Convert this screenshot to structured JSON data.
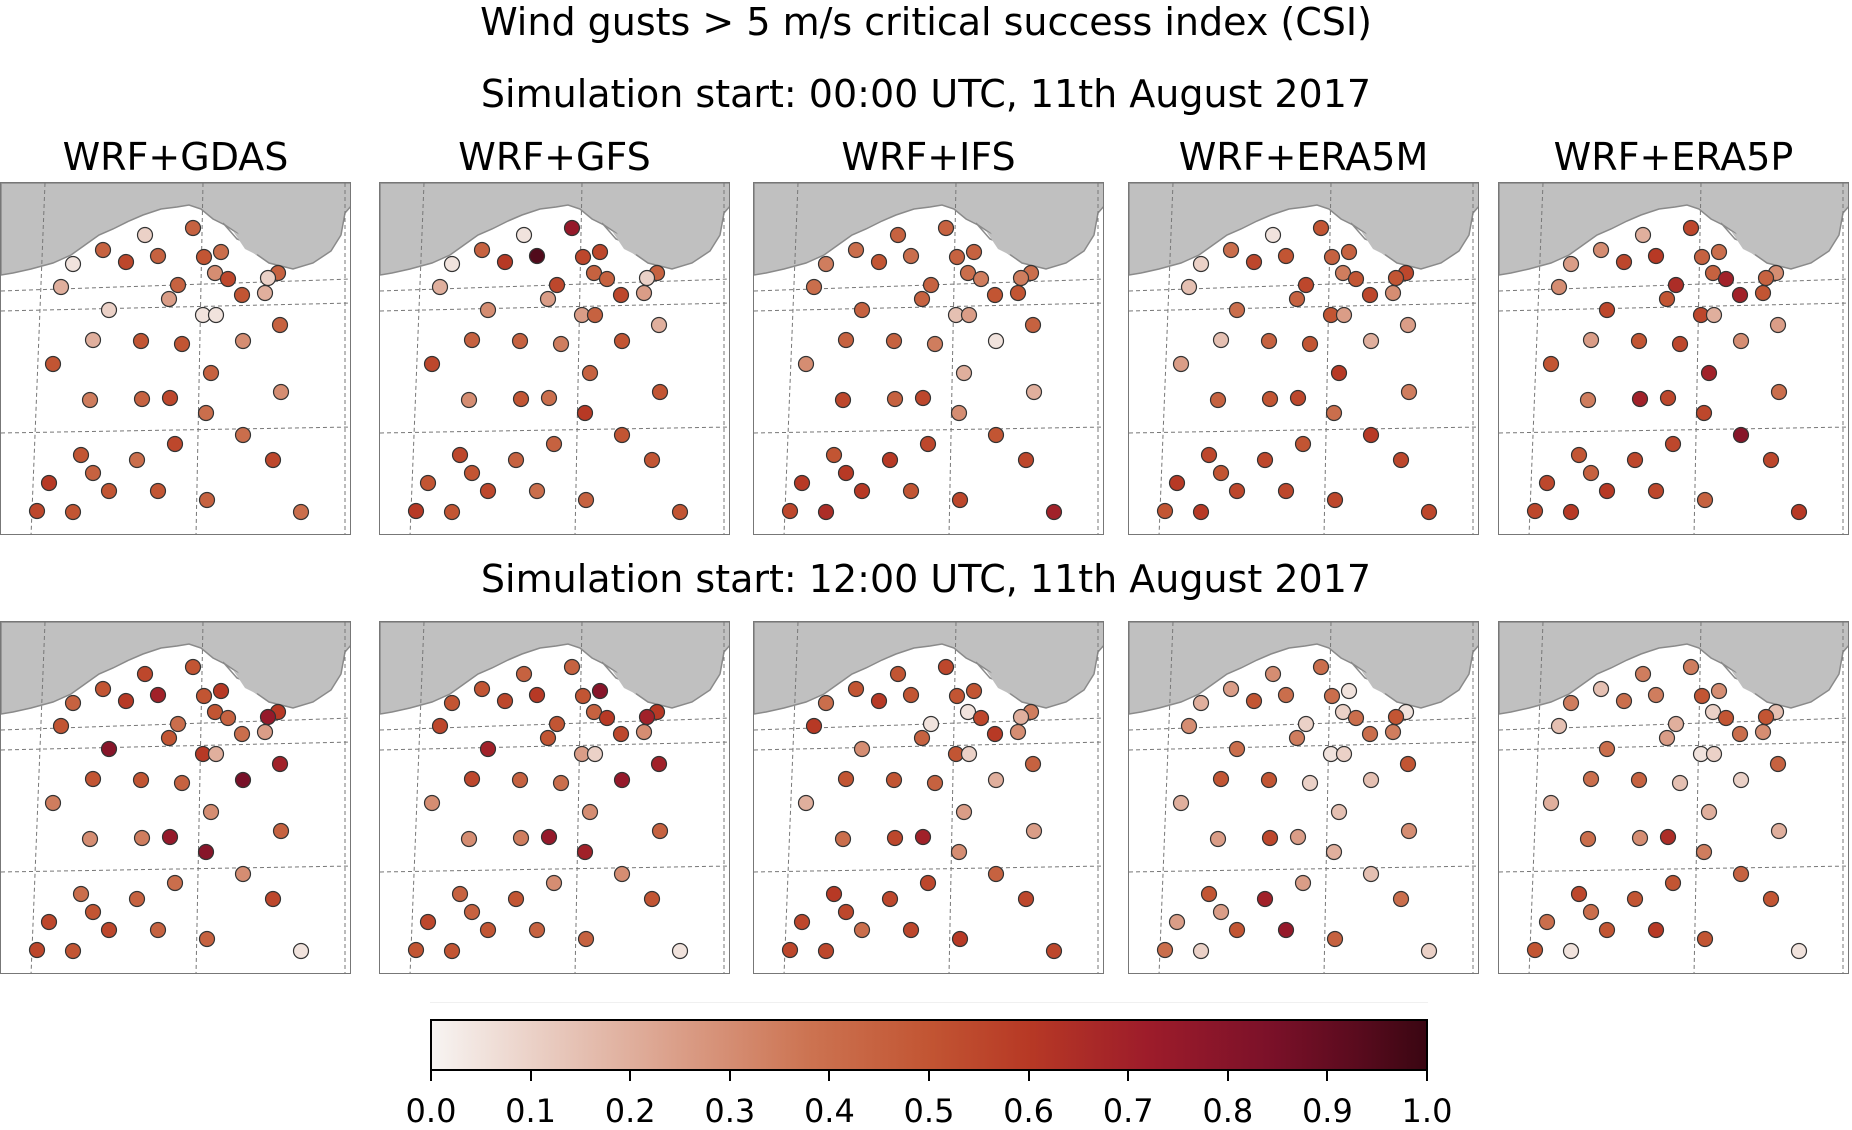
{
  "title": "Wind gusts > 5 m/s critical success index (CSI)",
  "row_titles": [
    "Simulation start: 00:00 UTC, 11th August 2017",
    "Simulation start: 12:00 UTC, 11th August 2017"
  ],
  "model_titles": [
    "WRF+GDAS",
    "WRF+GFS",
    "WRF+IFS",
    "WRF+ERA5M",
    "WRF+ERA5P"
  ],
  "colorbar": {
    "colormap": "white-to-dark-red",
    "min": 0.0,
    "max": 1.0,
    "tick_labels": [
      "0.0",
      "0.1",
      "0.2",
      "0.3",
      "0.4",
      "0.5",
      "0.6",
      "0.7",
      "0.8",
      "0.9",
      "1.0"
    ]
  },
  "colors": {
    "land": "#c0c0c0",
    "coast": "#8a8a8a",
    "station_edge": "#333333",
    "gridline": "#777777"
  },
  "map_panels": {
    "row1": [
      [
        0.1,
        0.45,
        0.4,
        0.45,
        0.05,
        0.2,
        0.55,
        0.45,
        0.5,
        0.3,
        0.45,
        0.55,
        0.5,
        0.2,
        0.45,
        0.1,
        0.1,
        0.25,
        0.05,
        0.05,
        0.45,
        0.2,
        0.5,
        0.5,
        0.3,
        0.5,
        0.45,
        0.35,
        0.45,
        0.55,
        0.4,
        0.3,
        0.4,
        0.55,
        0.5,
        0.4,
        0.45,
        0.55,
        0.6,
        0.5,
        0.5,
        0.45,
        0.55,
        0.5,
        0.4
      ],
      [
        0.05,
        0.75,
        0.55,
        0.45,
        0.05,
        0.2,
        0.6,
        0.95,
        0.55,
        0.45,
        0.55,
        0.45,
        0.55,
        0.25,
        0.45,
        0.1,
        0.3,
        0.25,
        0.25,
        0.45,
        0.2,
        0.45,
        0.45,
        0.35,
        0.5,
        0.55,
        0.45,
        0.3,
        0.5,
        0.4,
        0.6,
        0.5,
        0.5,
        0.45,
        0.55,
        0.45,
        0.5,
        0.5,
        0.5,
        0.55,
        0.4,
        0.45,
        0.6,
        0.5,
        0.5
      ],
      [
        0.45,
        0.45,
        0.45,
        0.4,
        0.35,
        0.4,
        0.5,
        0.4,
        0.45,
        0.4,
        0.45,
        0.35,
        0.5,
        0.5,
        0.4,
        0.35,
        0.45,
        0.45,
        0.15,
        0.25,
        0.45,
        0.45,
        0.45,
        0.35,
        0.05,
        0.3,
        0.2,
        0.55,
        0.45,
        0.55,
        0.3,
        0.2,
        0.5,
        0.55,
        0.5,
        0.6,
        0.6,
        0.55,
        0.6,
        0.6,
        0.5,
        0.55,
        0.55,
        0.65,
        0.7
      ],
      [
        0.05,
        0.5,
        0.45,
        0.4,
        0.1,
        0.15,
        0.55,
        0.5,
        0.45,
        0.35,
        0.55,
        0.5,
        0.55,
        0.3,
        0.55,
        0.5,
        0.4,
        0.45,
        0.5,
        0.25,
        0.25,
        0.15,
        0.45,
        0.5,
        0.2,
        0.25,
        0.6,
        0.45,
        0.5,
        0.55,
        0.4,
        0.35,
        0.6,
        0.5,
        0.55,
        0.55,
        0.5,
        0.55,
        0.6,
        0.55,
        0.55,
        0.55,
        0.5,
        0.6,
        0.55
      ],
      [
        0.2,
        0.55,
        0.4,
        0.3,
        0.25,
        0.3,
        0.55,
        0.6,
        0.45,
        0.45,
        0.65,
        0.7,
        0.7,
        0.5,
        0.3,
        0.45,
        0.55,
        0.5,
        0.55,
        0.2,
        0.25,
        0.25,
        0.5,
        0.55,
        0.3,
        0.5,
        0.7,
        0.35,
        0.7,
        0.55,
        0.55,
        0.4,
        0.8,
        0.55,
        0.5,
        0.55,
        0.45,
        0.55,
        0.55,
        0.6,
        0.55,
        0.45,
        0.55,
        0.6,
        0.6
      ]
    ],
    "row2": [
      [
        0.55,
        0.5,
        0.6,
        0.5,
        0.45,
        0.5,
        0.6,
        0.7,
        0.5,
        0.5,
        0.4,
        0.45,
        0.4,
        0.25,
        0.6,
        0.75,
        0.8,
        0.5,
        0.6,
        0.2,
        0.7,
        0.5,
        0.5,
        0.45,
        0.85,
        0.35,
        0.3,
        0.3,
        0.35,
        0.75,
        0.8,
        0.45,
        0.3,
        0.4,
        0.4,
        0.45,
        0.5,
        0.55,
        0.55,
        0.55,
        0.45,
        0.45,
        0.55,
        0.5,
        0.05
      ],
      [
        0.45,
        0.45,
        0.8,
        0.5,
        0.5,
        0.55,
        0.55,
        0.6,
        0.5,
        0.45,
        0.5,
        0.6,
        0.55,
        0.3,
        0.6,
        0.7,
        0.7,
        0.5,
        0.25,
        0.1,
        0.7,
        0.55,
        0.45,
        0.4,
        0.75,
        0.3,
        0.3,
        0.3,
        0.35,
        0.75,
        0.7,
        0.45,
        0.3,
        0.3,
        0.45,
        0.5,
        0.45,
        0.5,
        0.55,
        0.5,
        0.45,
        0.45,
        0.5,
        0.5,
        0.05
      ],
      [
        0.5,
        0.55,
        0.5,
        0.5,
        0.4,
        0.6,
        0.6,
        0.5,
        0.5,
        0.05,
        0.05,
        0.55,
        0.6,
        0.3,
        0.35,
        0.2,
        0.3,
        0.45,
        0.5,
        0.1,
        0.45,
        0.5,
        0.5,
        0.45,
        0.2,
        0.2,
        0.25,
        0.4,
        0.55,
        0.7,
        0.3,
        0.25,
        0.45,
        0.55,
        0.6,
        0.55,
        0.55,
        0.55,
        0.55,
        0.4,
        0.55,
        0.6,
        0.55,
        0.55,
        0.55
      ],
      [
        0.3,
        0.4,
        0.05,
        0.25,
        0.2,
        0.3,
        0.5,
        0.4,
        0.4,
        0.1,
        0.1,
        0.4,
        0.4,
        0.35,
        0.05,
        0.5,
        0.4,
        0.35,
        0.05,
        0.1,
        0.5,
        0.5,
        0.5,
        0.1,
        0.15,
        0.2,
        0.15,
        0.25,
        0.55,
        0.25,
        0.2,
        0.3,
        0.15,
        0.25,
        0.5,
        0.7,
        0.25,
        0.4,
        0.25,
        0.5,
        0.75,
        0.45,
        0.4,
        0.1,
        0.1
      ],
      [
        0.35,
        0.35,
        0.3,
        0.15,
        0.35,
        0.15,
        0.4,
        0.35,
        0.5,
        0.1,
        0.2,
        0.5,
        0.4,
        0.3,
        0.15,
        0.5,
        0.4,
        0.25,
        0.05,
        0.1,
        0.45,
        0.4,
        0.45,
        0.15,
        0.1,
        0.2,
        0.2,
        0.4,
        0.3,
        0.65,
        0.35,
        0.2,
        0.45,
        0.5,
        0.55,
        0.5,
        0.4,
        0.5,
        0.4,
        0.5,
        0.6,
        0.5,
        0.5,
        0.05,
        0.05
      ]
    ]
  }
}
